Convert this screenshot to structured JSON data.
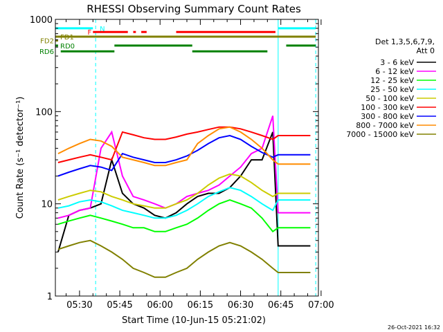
{
  "chart_data": {
    "type": "line",
    "title": "RHESSI Observing Summary Count Rates",
    "xlabel": "Start Time (10-Jun-15 05:21:02)",
    "ylabel": "Count Rate (s⁻¹ detector⁻¹)",
    "y_scale": "log",
    "xlim": [
      "05:21",
      "06:59"
    ],
    "ylim": [
      1,
      1000
    ],
    "x_ticks": [
      "05:30",
      "05:45",
      "06:00",
      "06:15",
      "06:30",
      "06:45",
      "07:00"
    ],
    "y_ticks": [
      "1",
      "10",
      "100",
      "1000"
    ],
    "grid": false,
    "legend_position": "right",
    "legend_header": [
      "Det 1,3,5,6,7,9,",
      "Att 0"
    ],
    "timestamp": "26-Oct-2021 16:32",
    "x": [
      "05:22",
      "05:26",
      "05:30",
      "05:34",
      "05:38",
      "05:42",
      "05:46",
      "05:50",
      "05:54",
      "05:58",
      "06:02",
      "06:06",
      "06:10",
      "06:14",
      "06:18",
      "06:22",
      "06:26",
      "06:30",
      "06:34",
      "06:38",
      "06:42",
      "06:44",
      "06:48",
      "06:52",
      "06:56"
    ],
    "series": [
      {
        "name": "3 - 6 keV",
        "color": "#000000",
        "values": [
          3,
          7.5,
          8.5,
          9,
          10,
          30,
          13,
          10,
          9,
          7.5,
          7,
          8,
          10,
          12,
          13,
          13,
          15,
          20,
          30,
          30,
          60,
          3.5,
          3.5,
          3.5,
          3.5
        ]
      },
      {
        "name": "6 - 12 keV",
        "color": "#ff00ff",
        "values": [
          7,
          7.5,
          8.5,
          9,
          40,
          60,
          20,
          12,
          11,
          10,
          9,
          10,
          12,
          13,
          14,
          16,
          20,
          25,
          35,
          40,
          90,
          8,
          8,
          8,
          8
        ]
      },
      {
        "name": "12 - 25 keV",
        "color": "#00ff00",
        "values": [
          6,
          6.5,
          7,
          7.5,
          7,
          6.5,
          6,
          5.5,
          5.5,
          5,
          5,
          5.5,
          6,
          7,
          8.5,
          10,
          11,
          10,
          9,
          7,
          5,
          5.5,
          5.5,
          5.5,
          5.5
        ]
      },
      {
        "name": "25 - 50 keV",
        "color": "#00ffff",
        "values": [
          9,
          9.5,
          10.5,
          11,
          10.5,
          9.5,
          8.5,
          8,
          7.5,
          7,
          7,
          7.5,
          8.5,
          10,
          12,
          13.5,
          15,
          14,
          12,
          10,
          8.5,
          11,
          11,
          11,
          11
        ]
      },
      {
        "name": "50 - 100 keV",
        "color": "#cccc00",
        "values": [
          11,
          12,
          13,
          14,
          13.5,
          12,
          11,
          10,
          9.5,
          9,
          9,
          10,
          11,
          13,
          16,
          19,
          21,
          20,
          17,
          14,
          12,
          13,
          13,
          13,
          13
        ]
      },
      {
        "name": "100 - 300 keV",
        "color": "#ff0000",
        "values": [
          28,
          30,
          32,
          34,
          32,
          30,
          60,
          56,
          52,
          50,
          50,
          53,
          57,
          60,
          64,
          68,
          68,
          65,
          60,
          55,
          50,
          55,
          55,
          55,
          55
        ]
      },
      {
        "name": "300 - 800 keV",
        "color": "#0000ff",
        "values": [
          20,
          22,
          24,
          26,
          25,
          23,
          35,
          32,
          30,
          28,
          28,
          30,
          33,
          38,
          45,
          52,
          55,
          50,
          42,
          36,
          32,
          34,
          34,
          34,
          34
        ]
      },
      {
        "name": "800 - 7000 keV",
        "color": "#ff8c00",
        "values": [
          35,
          40,
          45,
          50,
          48,
          42,
          32,
          30,
          28,
          26,
          26,
          28,
          30,
          45,
          55,
          65,
          68,
          60,
          50,
          40,
          30,
          27,
          27,
          27,
          27
        ]
      },
      {
        "name": "7000 - 15000 keV",
        "color": "#808000",
        "values": [
          3.2,
          3.5,
          3.8,
          4,
          3.5,
          3,
          2.5,
          2,
          1.8,
          1.6,
          1.6,
          1.8,
          2,
          2.5,
          3,
          3.5,
          3.8,
          3.5,
          3,
          2.5,
          2,
          1.8,
          1.8,
          1.8,
          1.8
        ]
      }
    ],
    "flag_bars": [
      {
        "label": "N",
        "color": "#00ffff",
        "value": 800,
        "segments": [
          [
            "05:21",
            "05:35"
          ],
          [
            "06:44",
            "06:58"
          ]
        ]
      },
      {
        "label": "F",
        "color": "#ff0000",
        "value": 730,
        "segments": [
          [
            "05:35",
            "05:48"
          ],
          [
            "05:50",
            "05:51"
          ],
          [
            "05:53",
            "05:55"
          ],
          [
            "06:06",
            "06:43"
          ]
        ]
      },
      {
        "label": "FD1",
        "color": "#808000",
        "value": 650,
        "segments": [
          [
            "05:21",
            "06:58"
          ]
        ]
      },
      {
        "label": "FD2",
        "color": "#808000",
        "value": 590,
        "segments": [
          [
            "05:21",
            "05:22"
          ]
        ]
      },
      {
        "label": "RD0",
        "color": "#008000",
        "value": 520,
        "segments": [
          [
            "05:21",
            "05:22"
          ],
          [
            "05:43",
            "06:12"
          ],
          [
            "06:47",
            "06:58"
          ]
        ]
      },
      {
        "label": "RD6",
        "color": "#008000",
        "value": 450,
        "segments": [
          [
            "05:23",
            "05:43"
          ],
          [
            "06:12",
            "06:40"
          ]
        ]
      }
    ],
    "marker_lines": [
      {
        "time": "05:21",
        "style": "solid"
      },
      {
        "time": "05:36",
        "style": "dashed"
      },
      {
        "time": "06:44",
        "style": "solid"
      },
      {
        "time": "06:58",
        "style": "dashed"
      }
    ]
  }
}
